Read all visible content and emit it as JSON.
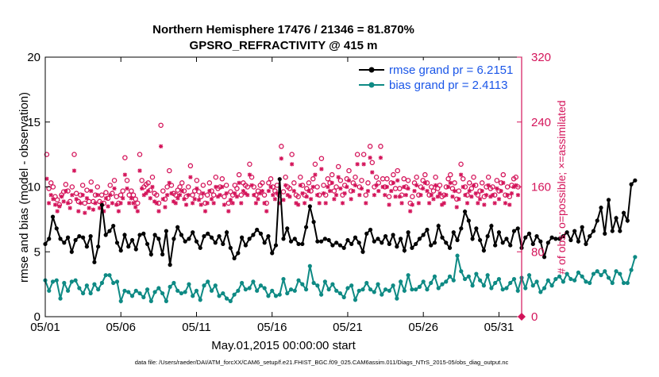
{
  "colors": {
    "rmse": "#000000",
    "bias": "#0e8a84",
    "obs": "#d4145a",
    "legend_text": "#1a56e8"
  },
  "chart_data": {
    "type": "line",
    "title": "Northern Hemisphere 17476 / 21346 = 81.870%",
    "subtitle": "GPSRO_REFRACTIVITY @ 415 m",
    "xlabel": "May.01,2015 00:00:00 start",
    "ylabel": "rmse and bias (model - observation)",
    "y2label": "# of obs: o=possible; ×=assimilated",
    "footnote": "data file: /Users/raeder/DAI/ATM_forcXX/CAM6_setup/f.e21.FHIST_BGC.f09_025.CAM6assim.011/Diags_NTrS_2015-05/obs_diag_output.nc",
    "xlim": [
      0,
      31.5
    ],
    "ylim": [
      0,
      20
    ],
    "y2lim": [
      0,
      320
    ],
    "xticks": [
      0,
      5,
      10,
      15,
      20,
      25,
      30
    ],
    "xtick_labels": [
      "05/01",
      "05/06",
      "05/11",
      "05/16",
      "05/21",
      "05/26",
      "05/31"
    ],
    "yticks": [
      0,
      5,
      10,
      15,
      20
    ],
    "ytick_labels": [
      "0",
      "5",
      "10",
      "15",
      "20"
    ],
    "y2ticks": [
      0,
      80,
      160,
      240,
      320
    ],
    "y2tick_labels": [
      "0",
      "80",
      "160",
      "240",
      "320"
    ],
    "legend_position": "top-right",
    "x_step_days": 0.25,
    "series": [
      {
        "name": "rmse grand pr = 6.2151",
        "axis": "left",
        "values": [
          5.6,
          6.0,
          7.7,
          6.8,
          6.0,
          5.7,
          6.1,
          5.0,
          5.9,
          6.2,
          6.1,
          5.4,
          6.2,
          4.2,
          5.4,
          8.6,
          6.3,
          6.6,
          7.0,
          5.7,
          5.1,
          6.3,
          5.4,
          5.9,
          5.2,
          6.3,
          6.4,
          5.6,
          4.8,
          6.3,
          6.0,
          4.8,
          6.6,
          4.0,
          6.0,
          6.9,
          6.3,
          5.8,
          6.0,
          6.5,
          5.8,
          5.3,
          6.2,
          6.4,
          6.1,
          5.7,
          6.2,
          5.6,
          6.5,
          5.3,
          4.5,
          4.9,
          6.1,
          5.5,
          6.0,
          6.3,
          6.7,
          6.4,
          5.7,
          6.2,
          4.9,
          5.5,
          10.6,
          6.0,
          6.8,
          5.8,
          6.0,
          5.6,
          5.6,
          6.9,
          8.5,
          7.3,
          5.8,
          5.8,
          6.0,
          5.9,
          5.5,
          5.7,
          5.5,
          5.3,
          5.9,
          5.6,
          6.1,
          5.7,
          5.0,
          6.4,
          6.7,
          5.8,
          6.0,
          5.7,
          6.2,
          5.6,
          6.3,
          5.4,
          6.0,
          5.1,
          6.5,
          5.3,
          5.6,
          6.0,
          6.3,
          6.7,
          5.5,
          5.7,
          7.0,
          6.1,
          5.7,
          5.3,
          6.5,
          5.9,
          6.8,
          8.1,
          7.4,
          6.0,
          6.8,
          5.9,
          5.1,
          6.2,
          7.0,
          5.5,
          6.5,
          5.7,
          6.0,
          5.5,
          6.6,
          6.8,
          5.3,
          6.1,
          6.4,
          5.6,
          6.2,
          5.8,
          4.6,
          5.7,
          6.1,
          6.0,
          6.0,
          6.2,
          6.5,
          5.9,
          6.6,
          5.8,
          6.9,
          5.6,
          6.2,
          6.6,
          7.4,
          8.4,
          6.4,
          9.0,
          6.6,
          7.6,
          6.6,
          8.0,
          7.4,
          10.2,
          10.5
        ],
        "marker": "dot"
      },
      {
        "name": "bias grand pr = 2.4113",
        "axis": "left",
        "values": [
          2.8,
          2.0,
          2.7,
          2.8,
          1.4,
          2.6,
          2.0,
          2.7,
          2.8,
          2.2,
          1.8,
          2.4,
          1.8,
          2.5,
          2.1,
          2.6,
          3.2,
          3.2,
          2.6,
          2.7,
          1.2,
          2.0,
          1.9,
          1.6,
          2.0,
          1.8,
          1.5,
          2.1,
          1.2,
          1.9,
          2.2,
          1.8,
          1.2,
          2.3,
          2.6,
          2.0,
          1.8,
          1.9,
          2.5,
          1.6,
          2.0,
          1.3,
          2.4,
          2.7,
          2.0,
          2.4,
          1.6,
          1.8,
          1.4,
          1.2,
          1.7,
          2.0,
          2.6,
          2.1,
          2.2,
          2.7,
          2.0,
          2.4,
          2.2,
          1.6,
          2.0,
          1.6,
          1.7,
          2.9,
          1.8,
          2.1,
          2.0,
          2.8,
          2.5,
          2.1,
          3.9,
          2.6,
          2.4,
          1.7,
          2.7,
          2.1,
          2.5,
          2.0,
          1.8,
          1.5,
          2.2,
          2.4,
          1.3,
          2.0,
          2.1,
          2.6,
          2.1,
          1.9,
          2.5,
          1.7,
          2.1,
          2.0,
          2.4,
          1.4,
          2.7,
          2.0,
          3.2,
          2.1,
          2.1,
          2.3,
          2.7,
          2.1,
          2.6,
          3.1,
          2.2,
          2.5,
          2.7,
          3.1,
          2.8,
          4.7,
          3.5,
          2.9,
          3.1,
          2.4,
          3.3,
          2.8,
          2.4,
          3.2,
          2.2,
          2.6,
          2.9,
          2.1,
          2.2,
          2.6,
          2.9,
          2.0,
          3.0,
          2.2,
          3.2,
          2.4,
          2.7,
          1.9,
          2.2,
          2.8,
          2.4,
          2.9,
          3.1,
          2.7,
          3.3,
          2.9,
          2.8,
          3.4,
          3.1,
          2.7,
          2.6,
          3.3,
          3.5,
          3.2,
          3.5,
          3.0,
          2.6,
          3.5,
          3.3,
          2.6,
          2.6,
          3.6,
          4.6
        ],
        "marker": "dot"
      },
      {
        "name": "obs possible",
        "axis": "right",
        "marker": "circle",
        "values": [
          200,
          158,
          165,
          160,
          148,
          144,
          138,
          150,
          154,
          163,
          155,
          142,
          160,
          200,
          152,
          142,
          150,
          162,
          140,
          156,
          142,
          166,
          142,
          150,
          160,
          142,
          150,
          140,
          153,
          146,
          162,
          152,
          168,
          148,
          140,
          150,
          155,
          196,
          168,
          150,
          155,
          150,
          145,
          140,
          200,
          168,
          160,
          163,
          165,
          156,
          172,
          152,
          150,
          140,
          236,
          155,
          145,
          160,
          180,
          162,
          152,
          150,
          156,
          160,
          165,
          155,
          148,
          160,
          186,
          150,
          155,
          168,
          154,
          148,
          162,
          140,
          150,
          165,
          155,
          150,
          172,
          158,
          160,
          170,
          148,
          162,
          140,
          154,
          150,
          162,
          158,
          175,
          150,
          165,
          162,
          160,
          188,
          172,
          160,
          150,
          155,
          162,
          165,
          150,
          140,
          165,
          170,
          160,
          155,
          162,
          150,
          210,
          154,
          172,
          160,
          158,
          200,
          165,
          150,
          148,
          172,
          162,
          150,
          158,
          165,
          155,
          170,
          188,
          160,
          150,
          195,
          162,
          150,
          170,
          165,
          175,
          155,
          160,
          185,
          168,
          150,
          162,
          170,
          180,
          155,
          165,
          172,
          200,
          160,
          168,
          200,
          150,
          165,
          210,
          190,
          160,
          172,
          165,
          210,
          170,
          160,
          170,
          148,
          165,
          175,
          158,
          180,
          158,
          150,
          170,
          160,
          168,
          140,
          148,
          165,
          172,
          150,
          160,
          168,
          175,
          165,
          150,
          160,
          155,
          172,
          158,
          162,
          148,
          150,
          160,
          170,
          175,
          158,
          165,
          145,
          155,
          188,
          170,
          160,
          150,
          165,
          158,
          172,
          162,
          150,
          155,
          165,
          148,
          160,
          172,
          158,
          160,
          150,
          168,
          155,
          165,
          175,
          150,
          160,
          148,
          162,
          170,
          172,
          160
        ]
      },
      {
        "name": "obs assimilated",
        "axis": "right",
        "marker": "x",
        "values": [
          170,
          140,
          150,
          145,
          138,
          130,
          136,
          148,
          142,
          155,
          140,
          134,
          150,
          180,
          145,
          130,
          140,
          150,
          128,
          146,
          134,
          155,
          132,
          140,
          150,
          134,
          140,
          130,
          146,
          136,
          150,
          140,
          158,
          138,
          130,
          140,
          146,
          175,
          158,
          140,
          146,
          140,
          135,
          130,
          180,
          158,
          150,
          152,
          155,
          146,
          160,
          142,
          140,
          130,
          210,
          145,
          135,
          150,
          165,
          152,
          142,
          140,
          146,
          150,
          155,
          145,
          138,
          150,
          172,
          140,
          145,
          158,
          144,
          138,
          152,
          130,
          140,
          155,
          145,
          140,
          160,
          148,
          150,
          160,
          138,
          152,
          130,
          144,
          140,
          152,
          148,
          165,
          140,
          155,
          152,
          150,
          175,
          162,
          150,
          140,
          145,
          152,
          155,
          140,
          130,
          155,
          160,
          150,
          145,
          152,
          140,
          195,
          144,
          162,
          150,
          148,
          188,
          155,
          140,
          138,
          162,
          152,
          140,
          148,
          155,
          145,
          160,
          175,
          150,
          140,
          182,
          152,
          140,
          160,
          155,
          165,
          145,
          150,
          172,
          158,
          140,
          152,
          160,
          168,
          145,
          155,
          162,
          188,
          150,
          158,
          188,
          140,
          155,
          196,
          178,
          150,
          162,
          155,
          196,
          160,
          150,
          160,
          138,
          155,
          165,
          148,
          168,
          148,
          140,
          160,
          150,
          158,
          130,
          138,
          155,
          162,
          140,
          150,
          158,
          165,
          155,
          140,
          150,
          145,
          162,
          148,
          152,
          138,
          140,
          150,
          160,
          165,
          148,
          155,
          135,
          145,
          175,
          160,
          150,
          140,
          155,
          148,
          162,
          152,
          140,
          145,
          155,
          138,
          150,
          162,
          148,
          150,
          140,
          158,
          145,
          155,
          165,
          140,
          150,
          138,
          152,
          160,
          162,
          150
        ]
      }
    ]
  }
}
